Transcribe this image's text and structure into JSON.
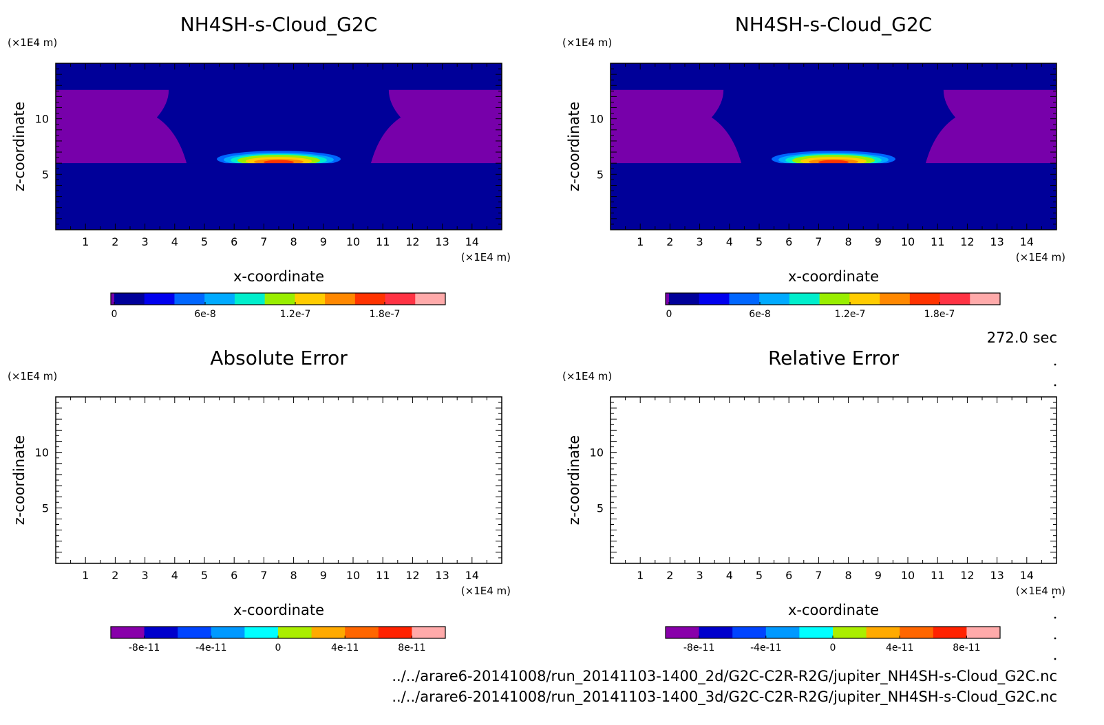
{
  "time_label": "272.0 sec",
  "files": [
    "../../arare6-20141008/run_20141103-1400_2d/G2C-C2R-R2G/jupiter_NH4SH-s-Cloud_G2C.nc",
    "../../arare6-20141008/run_20141103-1400_3d/G2C-C2R-R2G/jupiter_NH4SH-s-Cloud_G2C.nc"
  ],
  "chart_data": [
    {
      "type": "heatmap",
      "title": "NH4SH-s-Cloud_G2C",
      "xlabel": "x-coordinate",
      "ylabel": "z-coordinate",
      "xunit": "(×1E4 m)",
      "yunit": "(×1E4 m)",
      "xlim": [
        0,
        15
      ],
      "ylim": [
        0,
        15
      ],
      "xticks": [
        "1",
        "2",
        "3",
        "4",
        "5",
        "6",
        "7",
        "8",
        "9",
        "10",
        "11",
        "12",
        "13",
        "14"
      ],
      "yticks": [
        "5",
        "10"
      ],
      "colorbar": {
        "colors": [
          "#000099",
          "#0000ee",
          "#0066ff",
          "#00aaff",
          "#00eecc",
          "#99ee00",
          "#ffcc00",
          "#ff8800",
          "#ff3300",
          "#ff3344",
          "#ffaaaa"
        ],
        "labels": [
          "0",
          "6e-8",
          "1.2e-7",
          "1.8e-7"
        ]
      },
      "field": {
        "max": 2.1e-07,
        "peak_x": 7.5,
        "peak_z": 6.1,
        "cloud_base_z": 6.0,
        "cloud_top_z": 12.6
      }
    },
    {
      "type": "heatmap",
      "title": "NH4SH-s-Cloud_G2C",
      "xlabel": "x-coordinate",
      "ylabel": "z-coordinate",
      "xunit": "(×1E4 m)",
      "yunit": "(×1E4 m)",
      "xlim": [
        0,
        15
      ],
      "ylim": [
        0,
        15
      ],
      "xticks": [
        "1",
        "2",
        "3",
        "4",
        "5",
        "6",
        "7",
        "8",
        "9",
        "10",
        "11",
        "12",
        "13",
        "14"
      ],
      "yticks": [
        "5",
        "10"
      ],
      "colorbar": {
        "colors": [
          "#000099",
          "#0000ee",
          "#0066ff",
          "#00aaff",
          "#00eecc",
          "#99ee00",
          "#ffcc00",
          "#ff8800",
          "#ff3300",
          "#ff3344",
          "#ffaaaa"
        ],
        "labels": [
          "0",
          "6e-8",
          "1.2e-7",
          "1.8e-7"
        ]
      },
      "field": {
        "max": 2.1e-07,
        "peak_x": 7.5,
        "peak_z": 6.1,
        "cloud_base_z": 6.0,
        "cloud_top_z": 12.6
      }
    },
    {
      "type": "heatmap",
      "title": "Absolute Error",
      "xlabel": "x-coordinate",
      "ylabel": "z-coordinate",
      "xunit": "(×1E4 m)",
      "yunit": "(×1E4 m)",
      "xlim": [
        0,
        15
      ],
      "ylim": [
        0,
        15
      ],
      "xticks": [
        "1",
        "2",
        "3",
        "4",
        "5",
        "6",
        "7",
        "8",
        "9",
        "10",
        "11",
        "12",
        "13",
        "14"
      ],
      "yticks": [
        "5",
        "10"
      ],
      "colorbar": {
        "colors": [
          "#8800aa",
          "#0000cc",
          "#0044ff",
          "#0099ff",
          "#00ffff",
          "#aaee00",
          "#ffaa00",
          "#ff6600",
          "#ff2200",
          "#ffaaaa"
        ],
        "labels": [
          "-8e-11",
          "-4e-11",
          "0",
          "4e-11",
          "8e-11"
        ]
      },
      "field": null
    },
    {
      "type": "heatmap",
      "title": "Relative Error",
      "xlabel": "x-coordinate",
      "ylabel": "z-coordinate",
      "xunit": "(×1E4 m)",
      "yunit": "(×1E4 m)",
      "xlim": [
        0,
        15
      ],
      "ylim": [
        0,
        15
      ],
      "xticks": [
        "1",
        "2",
        "3",
        "4",
        "5",
        "6",
        "7",
        "8",
        "9",
        "10",
        "11",
        "12",
        "13",
        "14"
      ],
      "yticks": [
        "5",
        "10"
      ],
      "colorbar": {
        "colors": [
          "#8800aa",
          "#0000cc",
          "#0044ff",
          "#0099ff",
          "#00ffff",
          "#aaee00",
          "#ffaa00",
          "#ff6600",
          "#ff2200",
          "#ffaaaa"
        ],
        "labels": [
          "-8e-11",
          "-4e-11",
          "0",
          "4e-11",
          "8e-11"
        ]
      },
      "field": null
    }
  ]
}
